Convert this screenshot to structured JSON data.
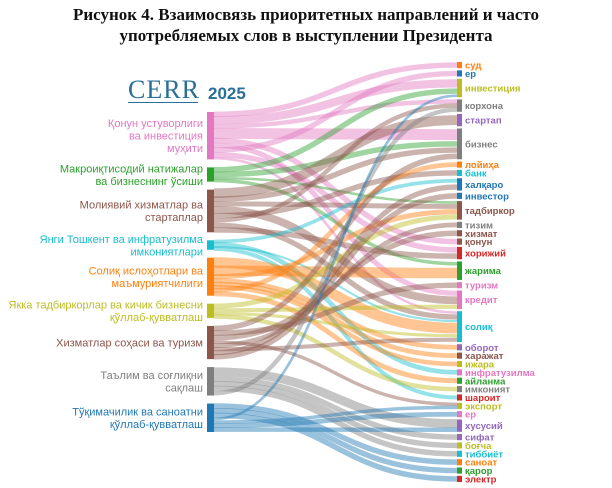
{
  "title": {
    "line1": "Рисунок 4. Взаимосвязь приоритетных направлений и часто",
    "line2": "употребляемых слов в выступлении Президента"
  },
  "logo": {
    "text": "CERR",
    "subtitle": "",
    "year": "2025"
  },
  "chart_data": {
    "type": "sankey",
    "sources": [
      {
        "label_lines": [
          "Қонун устуворлиги",
          "ва инвестиция",
          "муҳити"
        ],
        "color": "#e377c2",
        "weight": 10
      },
      {
        "label_lines": [
          "Макроиқтисодий натижалар",
          "ва бизнеснинг ўсиши"
        ],
        "color": "#2ca02c",
        "weight": 3
      },
      {
        "label_lines": [
          "Молиявий хизматлар ва",
          "стартаплар"
        ],
        "color": "#8c564b",
        "weight": 9
      },
      {
        "label_lines": [
          "Янги Тошкент ва инфратузилма",
          "имкониятлари"
        ],
        "color": "#17becf",
        "weight": 2
      },
      {
        "label_lines": [
          "Солиқ ислоҳотлари ва",
          "маъмуриятчилиги"
        ],
        "color": "#ff7f0e",
        "weight": 8
      },
      {
        "label_lines": [
          "Якка тадбиркорлар ва кичик бизнесни",
          "қўллаб-қувватлаш"
        ],
        "color": "#bcbd22",
        "weight": 3
      },
      {
        "label_lines": [
          "Хизматлар соҳаси ва туризм"
        ],
        "color": "#8c564b",
        "weight": 7
      },
      {
        "label_lines": [
          "Таълим ва соғлиқни",
          "сақлаш"
        ],
        "color": "#7f7f7f",
        "weight": 6
      },
      {
        "label_lines": [
          "Тўқимачилик ва саноатни",
          "қўллаб-қувватлаш"
        ],
        "color": "#1f77b4",
        "weight": 6
      }
    ],
    "targets": [
      {
        "label": "суд",
        "color": "#ff7f0e",
        "weight": 1
      },
      {
        "label": "ер",
        "color": "#1f77b4",
        "weight": 1
      },
      {
        "label": "инвестиция",
        "color": "#bcbd22",
        "weight": 3
      },
      {
        "label": "корхона",
        "color": "#7f7f7f",
        "weight": 2
      },
      {
        "label": "стартап",
        "color": "#9467bd",
        "weight": 2
      },
      {
        "label": "бизнес",
        "color": "#7f7f7f",
        "weight": 5
      },
      {
        "label": "лойиҳа",
        "color": "#ff7f0e",
        "weight": 1
      },
      {
        "label": "банк",
        "color": "#17becf",
        "weight": 1
      },
      {
        "label": "халқаро",
        "color": "#1f77b4",
        "weight": 2
      },
      {
        "label": "инвестор",
        "color": "#1f77b4",
        "weight": 1
      },
      {
        "label": "тадбиркор",
        "color": "#8c564b",
        "weight": 3
      },
      {
        "label": "тизим",
        "color": "#7f7f7f",
        "weight": 1
      },
      {
        "label": "хизмат",
        "color": "#8c564b",
        "weight": 1
      },
      {
        "label": "қонун",
        "color": "#8c564b",
        "weight": 1
      },
      {
        "label": "хорижий",
        "color": "#d62728",
        "weight": 2
      },
      {
        "label": "жарима",
        "color": "#2ca02c",
        "weight": 3
      },
      {
        "label": "туризм",
        "color": "#e377c2",
        "weight": 1
      },
      {
        "label": "кредит",
        "color": "#e377c2",
        "weight": 3
      },
      {
        "label": "солиқ",
        "color": "#17becf",
        "weight": 5
      },
      {
        "label": "оборот",
        "color": "#9467bd",
        "weight": 1
      },
      {
        "label": "харажат",
        "color": "#8c564b",
        "weight": 1
      },
      {
        "label": "ижара",
        "color": "#bcbd22",
        "weight": 1
      },
      {
        "label": "инфратузилма",
        "color": "#e377c2",
        "weight": 1
      },
      {
        "label": "айланма",
        "color": "#2ca02c",
        "weight": 1
      },
      {
        "label": "имконият",
        "color": "#7f7f7f",
        "weight": 1
      },
      {
        "label": "шароит",
        "color": "#d62728",
        "weight": 1
      },
      {
        "label": "экспорт",
        "color": "#bcbd22",
        "weight": 1
      },
      {
        "label": "ер",
        "color": "#e377c2",
        "weight": 1
      },
      {
        "label": "хусусий",
        "color": "#9467bd",
        "weight": 2
      },
      {
        "label": "сифат",
        "color": "#9467bd",
        "weight": 1
      },
      {
        "label": "боғча",
        "color": "#bcbd22",
        "weight": 1
      },
      {
        "label": "тиббиёт",
        "color": "#17becf",
        "weight": 1
      },
      {
        "label": "саноат",
        "color": "#ff7f0e",
        "weight": 1
      },
      {
        "label": "қарор",
        "color": "#2ca02c",
        "weight": 1
      },
      {
        "label": "электр",
        "color": "#d62728",
        "weight": 1
      }
    ],
    "links": [
      [
        0,
        0,
        1
      ],
      [
        0,
        2,
        1.5
      ],
      [
        0,
        3,
        1
      ],
      [
        0,
        5,
        2
      ],
      [
        0,
        13,
        1
      ],
      [
        0,
        17,
        1
      ],
      [
        0,
        1,
        1
      ],
      [
        0,
        14,
        1
      ],
      [
        0,
        18,
        0.5
      ],
      [
        1,
        2,
        1
      ],
      [
        1,
        5,
        1
      ],
      [
        1,
        10,
        0.5
      ],
      [
        1,
        15,
        0.5
      ],
      [
        2,
        4,
        1.5
      ],
      [
        2,
        5,
        1
      ],
      [
        2,
        10,
        1
      ],
      [
        2,
        17,
        1.5
      ],
      [
        2,
        7,
        1
      ],
      [
        2,
        3,
        1
      ],
      [
        2,
        18,
        1
      ],
      [
        2,
        14,
        1
      ],
      [
        3,
        8,
        0.5
      ],
      [
        3,
        22,
        0.7
      ],
      [
        3,
        18,
        0.4
      ],
      [
        3,
        25,
        0.4
      ],
      [
        4,
        18,
        2
      ],
      [
        4,
        15,
        1.5
      ],
      [
        4,
        10,
        1
      ],
      [
        4,
        19,
        0.7
      ],
      [
        4,
        20,
        0.7
      ],
      [
        4,
        21,
        0.6
      ],
      [
        4,
        6,
        0.7
      ],
      [
        4,
        23,
        0.8
      ],
      [
        5,
        10,
        1
      ],
      [
        5,
        17,
        0.8
      ],
      [
        5,
        18,
        0.6
      ],
      [
        5,
        24,
        0.6
      ],
      [
        6,
        5,
        1
      ],
      [
        6,
        16,
        1
      ],
      [
        6,
        12,
        1
      ],
      [
        6,
        26,
        0.8
      ],
      [
        6,
        11,
        0.7
      ],
      [
        6,
        18,
        0.8
      ],
      [
        6,
        8,
        0.7
      ],
      [
        6,
        9,
        1
      ],
      [
        7,
        28,
        2
      ],
      [
        7,
        29,
        1
      ],
      [
        7,
        30,
        1
      ],
      [
        7,
        31,
        1
      ],
      [
        7,
        3,
        1
      ],
      [
        8,
        32,
        1
      ],
      [
        8,
        33,
        1
      ],
      [
        8,
        34,
        1
      ],
      [
        8,
        2,
        0.5
      ],
      [
        8,
        26,
        0.8
      ],
      [
        8,
        27,
        0.7
      ],
      [
        8,
        28,
        1
      ]
    ]
  }
}
